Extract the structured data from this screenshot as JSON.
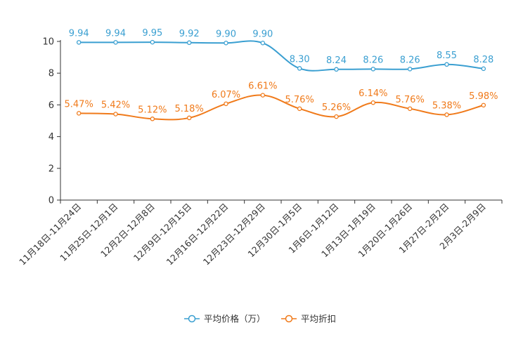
{
  "chart_data": {
    "type": "line",
    "title": "",
    "xlabel": "",
    "ylabel": "",
    "ylim": [
      0,
      10
    ],
    "yticks": [
      0,
      2,
      4,
      6,
      8,
      10
    ],
    "categories": [
      "11月18日-11月24日",
      "11月25日-12月1日",
      "12月2日-12月8日",
      "12月9日-12月15日",
      "12月16日-12月22日",
      "12月23日-12月29日",
      "12月30日-1月5日",
      "1月6日-1月12日",
      "1月13日-1月19日",
      "1月20日-1月26日",
      "1月27日-2月2日",
      "2月3日-2月9日"
    ],
    "series": [
      {
        "name": "平均价格（万）",
        "color": "#3a9fd1",
        "values": [
          9.94,
          9.94,
          9.95,
          9.92,
          9.9,
          9.9,
          8.3,
          8.24,
          8.26,
          8.26,
          8.55,
          8.28
        ],
        "labels": [
          "9.94",
          "9.94",
          "9.95",
          "9.92",
          "9.90",
          "9.90",
          "8.30",
          "8.24",
          "8.26",
          "8.26",
          "8.55",
          "8.28"
        ]
      },
      {
        "name": "平均折扣",
        "color": "#f07a1a",
        "values": [
          5.47,
          5.42,
          5.12,
          5.18,
          6.07,
          6.61,
          5.76,
          5.26,
          6.14,
          5.76,
          5.38,
          5.98
        ],
        "labels": [
          "5.47%",
          "5.42%",
          "5.12%",
          "5.18%",
          "6.07%",
          "6.61%",
          "5.76%",
          "5.26%",
          "6.14%",
          "5.76%",
          "5.38%",
          "5.98%"
        ]
      }
    ],
    "legend_position": "bottom-center",
    "grid": false
  }
}
